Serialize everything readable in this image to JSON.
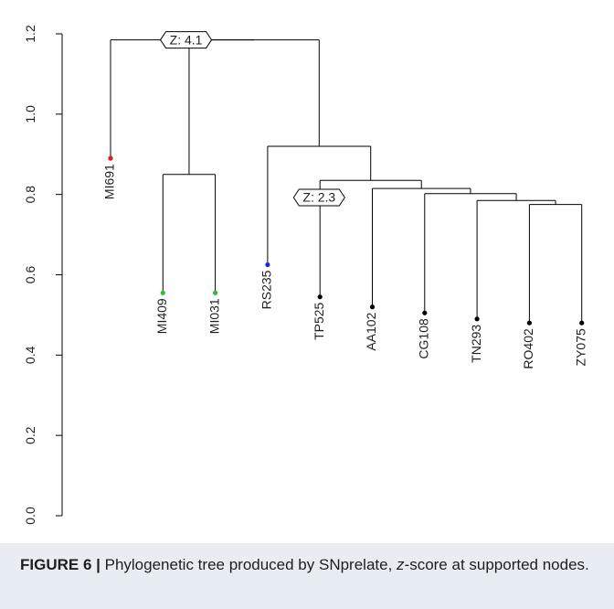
{
  "chart_data": {
    "type": "dendrogram",
    "y_axis": {
      "range": [
        0.0,
        1.2
      ],
      "ticks": [
        0.0,
        0.2,
        0.4,
        0.6,
        0.8,
        1.0,
        1.2
      ],
      "tick_labels": [
        "0.0",
        "0.2",
        "0.4",
        "0.6",
        "0.8",
        "1.0",
        "1.2"
      ]
    },
    "leaves": [
      {
        "label": "MI691",
        "height": 0.89,
        "color": "#e11b1b"
      },
      {
        "label": "MI409",
        "height": 0.555,
        "color": "#2fbf2f"
      },
      {
        "label": "MI031",
        "height": 0.555,
        "color": "#2fbf2f"
      },
      {
        "label": "RS235",
        "height": 0.625,
        "color": "#1a2bd6"
      },
      {
        "label": "TP525",
        "height": 0.545,
        "color": "#000000"
      },
      {
        "label": "AA102",
        "height": 0.52,
        "color": "#000000"
      },
      {
        "label": "CG108",
        "height": 0.505,
        "color": "#000000"
      },
      {
        "label": "TN293",
        "height": 0.49,
        "color": "#000000"
      },
      {
        "label": "RO402",
        "height": 0.48,
        "color": "#000000"
      },
      {
        "label": "ZY075",
        "height": 0.48,
        "color": "#000000"
      }
    ],
    "merges": [
      {
        "id": "n1",
        "left": "RO402",
        "right": "ZY075",
        "height": 0.775
      },
      {
        "id": "n2",
        "left": "TN293",
        "right": "n1",
        "height": 0.785
      },
      {
        "id": "n3",
        "left": "CG108",
        "right": "n2",
        "height": 0.802
      },
      {
        "id": "n4",
        "left": "AA102",
        "right": "n3",
        "height": 0.815
      },
      {
        "id": "n5",
        "left": "TP525",
        "right": "n4",
        "height": 0.835
      },
      {
        "id": "n6",
        "left": "RS235",
        "right": "n5",
        "height": 0.92
      },
      {
        "id": "n7",
        "left": "MI409",
        "right": "MI031",
        "height": 0.85
      },
      {
        "id": "n8",
        "left": "n7",
        "right": "n6",
        "height": 1.185
      },
      {
        "id": "n9",
        "left": "MI691",
        "right": "n8",
        "height": 1.185
      }
    ],
    "annotations": [
      {
        "node": "n8",
        "text": "Z: 4.1"
      },
      {
        "node": "n6",
        "text": "Z: 2.3"
      }
    ]
  },
  "caption": {
    "label": "FIGURE 6 |",
    "text_before": " Phylogenetic tree produced by SNprelate, ",
    "italic": "z",
    "text_after": "-score at supported nodes."
  }
}
